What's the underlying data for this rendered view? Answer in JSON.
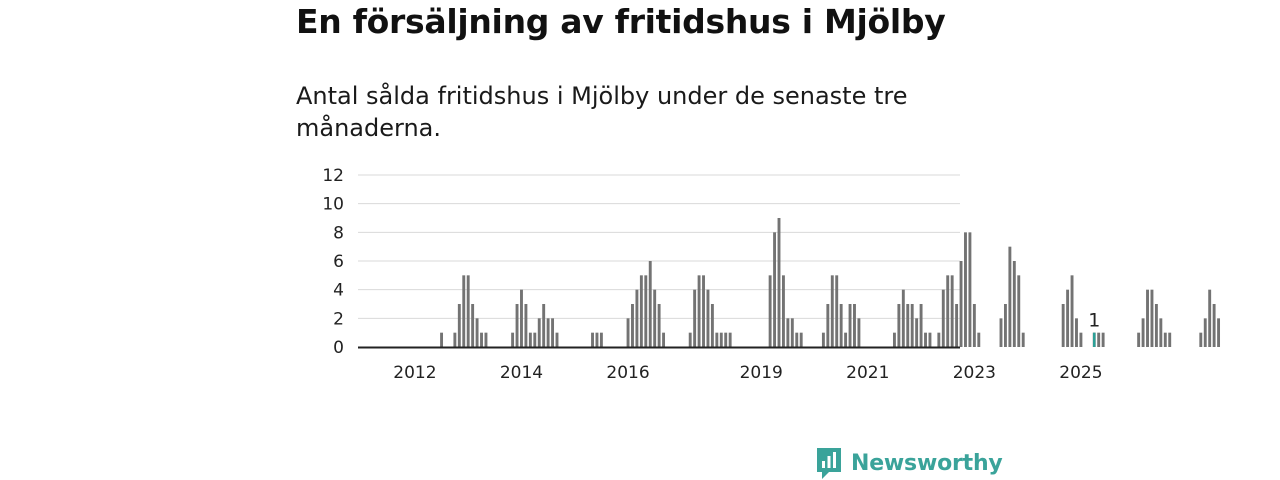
{
  "title": "En försäljning av fritidshus i Mjölby",
  "subtitle": "Antal sålda fritidshus i Mjölby under de senaste tre månaderna.",
  "brand": {
    "name": "Newsworthy",
    "icon": "newsworthy-logo-icon"
  },
  "colors": {
    "bar": "#737373",
    "highlight": "#2aa198",
    "grid": "#d9d9d9",
    "axis": "#222222",
    "brand": "#3aa39a"
  },
  "chart_data": {
    "type": "bar",
    "title": "",
    "xlabel": "",
    "ylabel": "",
    "ylim": [
      0,
      12
    ],
    "y_ticks": [
      "0",
      "2",
      "4",
      "6",
      "8",
      "10",
      "12"
    ],
    "x_ticks": [
      {
        "label": "2012",
        "at": "2012-07"
      },
      {
        "label": "2014",
        "at": "2014-07"
      },
      {
        "label": "2016",
        "at": "2016-07"
      },
      {
        "label": "2019",
        "at": "2019-01"
      },
      {
        "label": "2021",
        "at": "2021-01"
      },
      {
        "label": "2023",
        "at": "2023-01"
      },
      {
        "label": "2025",
        "at": "2025-01"
      }
    ],
    "start_month": "2011-01",
    "values": [
      0,
      0,
      0,
      0,
      0,
      0,
      0,
      0,
      0,
      0,
      0,
      0,
      0,
      0,
      0,
      0,
      0,
      0,
      0,
      0,
      0,
      0,
      0,
      0,
      1,
      0,
      0,
      1,
      3,
      5,
      5,
      3,
      2,
      1,
      1,
      0,
      0,
      0,
      0,
      0,
      1,
      3,
      4,
      3,
      1,
      1,
      2,
      3,
      2,
      2,
      1,
      0,
      0,
      0,
      0,
      0,
      0,
      0,
      1,
      1,
      1,
      0,
      0,
      0,
      0,
      0,
      2,
      3,
      4,
      5,
      5,
      6,
      4,
      3,
      1,
      0,
      0,
      0,
      0,
      0,
      1,
      4,
      5,
      5,
      4,
      3,
      1,
      1,
      1,
      1,
      0,
      0,
      0,
      0,
      0,
      0,
      0,
      0,
      5,
      8,
      9,
      5,
      2,
      2,
      1,
      1,
      0,
      0,
      0,
      0,
      1,
      3,
      5,
      5,
      3,
      1,
      3,
      3,
      2,
      0,
      0,
      0,
      0,
      0,
      0,
      0,
      1,
      3,
      4,
      3,
      3,
      2,
      3,
      1,
      1,
      0,
      1,
      4,
      5,
      5,
      3,
      6,
      8,
      8,
      3,
      1,
      0,
      0,
      0,
      0,
      2,
      3,
      7,
      6,
      5,
      1,
      0,
      0,
      0,
      0,
      0,
      0,
      0,
      0,
      3,
      4,
      5,
      2,
      1,
      0,
      0,
      1,
      1,
      1,
      0,
      0,
      0,
      0,
      0,
      0,
      0,
      1,
      2,
      4,
      4,
      3,
      2,
      1,
      1,
      0,
      0,
      0,
      0,
      0,
      0,
      1,
      2,
      4,
      3,
      2,
      0,
      0,
      0,
      0,
      0,
      0,
      0,
      0,
      0,
      0,
      0,
      0,
      0,
      0,
      0,
      0
    ],
    "highlight": {
      "month": "2025-04",
      "value": 1,
      "label": "1"
    }
  }
}
